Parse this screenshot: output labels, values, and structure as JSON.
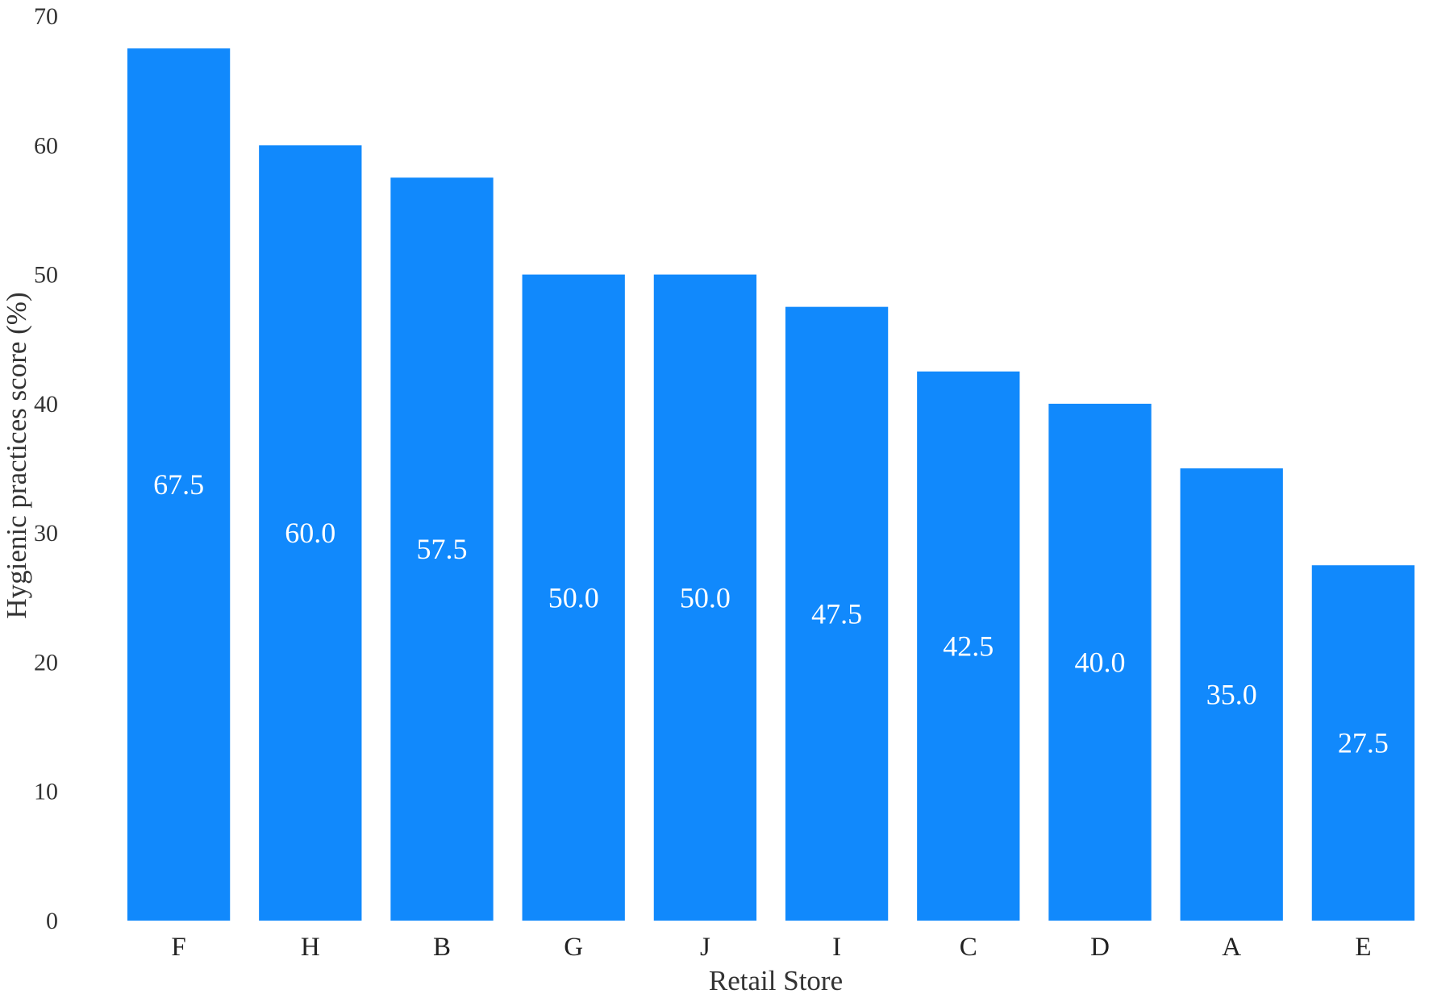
{
  "chart_data": {
    "type": "bar",
    "xlabel": "Retail Store",
    "ylabel": "Hygienic practices score (%)",
    "ylim": [
      0,
      70
    ],
    "yticks": [
      0,
      10,
      20,
      30,
      40,
      50,
      60,
      70
    ],
    "categories": [
      "F",
      "H",
      "B",
      "G",
      "J",
      "I",
      "C",
      "D",
      "A",
      "E"
    ],
    "values": [
      67.5,
      60.0,
      57.5,
      50.0,
      50.0,
      47.5,
      42.5,
      40.0,
      35.0,
      27.5
    ],
    "value_labels": [
      "67.5",
      "60.0",
      "57.5",
      "50.0",
      "50.0",
      "47.5",
      "42.5",
      "40.0",
      "35.0",
      "27.5"
    ],
    "bar_color": "#1189FC",
    "grid": false,
    "legend": "none"
  }
}
